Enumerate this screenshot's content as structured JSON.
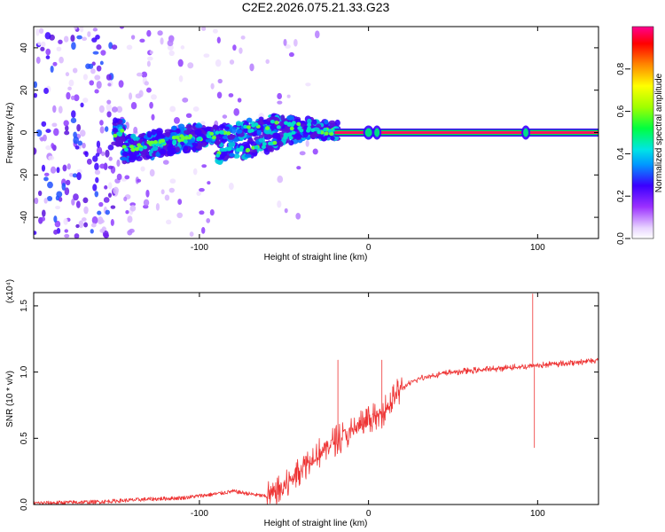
{
  "figure": {
    "title": "C2E2.2026.075.21.33.G23"
  },
  "chart_data": [
    {
      "type": "heatmap",
      "xlabel": "Height of straight line (km)",
      "ylabel": "Frequency (Hz)",
      "xlim": [
        -198,
        136
      ],
      "ylim": [
        -50,
        50
      ],
      "xticks": [
        -100,
        0,
        100
      ],
      "yticks": [
        -40,
        -20,
        0,
        20,
        40
      ],
      "xtick_labels": [
        "-100",
        "0",
        "100"
      ],
      "ytick_labels": [
        "-40",
        "-20",
        "0",
        "20",
        "40"
      ],
      "colorbar": {
        "label": "Normalized spectral amplitude",
        "range": [
          0,
          1
        ],
        "ticks": [
          0.0,
          0.2,
          0.4,
          0.6,
          0.8
        ],
        "tick_labels": [
          "0.0",
          "0.2",
          "0.4",
          "0.6",
          "0.8"
        ]
      },
      "ridge": {
        "description_points": [
          {
            "x": -145,
            "y": -8
          },
          {
            "x": -130,
            "y": -6
          },
          {
            "x": -110,
            "y": -3
          },
          {
            "x": -90,
            "y": -1
          },
          {
            "x": -70,
            "y": 2
          },
          {
            "x": -55,
            "y": 4
          },
          {
            "x": -40,
            "y": 3
          },
          {
            "x": -25,
            "y": 1
          },
          {
            "x": 0,
            "y": 0
          },
          {
            "x": 50,
            "y": 0
          },
          {
            "x": 136,
            "y": 0
          }
        ],
        "lower_branch": [
          {
            "x": -90,
            "y": -10
          },
          {
            "x": -75,
            "y": -8
          },
          {
            "x": -60,
            "y": -5
          },
          {
            "x": -45,
            "y": -1
          },
          {
            "x": -35,
            "y": 2
          }
        ]
      }
    },
    {
      "type": "line",
      "xlabel": "Height of straight line (km)",
      "ylabel": "SNR (10 * v/v)",
      "yscale_label": "(x10⁴)",
      "xlim": [
        -198,
        136
      ],
      "ylim": [
        0,
        1.6
      ],
      "xticks": [
        -100,
        0,
        100
      ],
      "yticks": [
        0.0,
        0.5,
        1.0,
        1.5
      ],
      "xtick_labels": [
        "-100",
        "0",
        "100"
      ],
      "ytick_labels": [
        "0.0",
        "0.5",
        "1.0",
        "1.5"
      ],
      "series": [
        {
          "name": "SNR",
          "color": "#ee3333",
          "x": [
            -198,
            -160,
            -130,
            -110,
            -90,
            -80,
            -70,
            -60,
            -50,
            -45,
            -40,
            -35,
            -30,
            -25,
            -20,
            -15,
            -10,
            -5,
            0,
            5,
            10,
            15,
            20,
            25,
            30,
            40,
            50,
            60,
            70,
            80,
            90,
            94,
            96,
            98,
            100,
            110,
            120,
            136
          ],
          "values": [
            0.01,
            0.02,
            0.04,
            0.05,
            0.08,
            0.1,
            0.08,
            0.06,
            0.12,
            0.2,
            0.28,
            0.33,
            0.38,
            0.43,
            0.48,
            0.52,
            0.55,
            0.6,
            0.63,
            0.66,
            0.72,
            0.8,
            0.88,
            0.92,
            0.95,
            0.98,
            1.0,
            1.01,
            1.02,
            1.03,
            1.04,
            1.04,
            1.05,
            1.05,
            1.05,
            1.06,
            1.07,
            1.09
          ]
        }
      ],
      "spikes": [
        {
          "x": -18,
          "y": 1.09
        },
        {
          "x": 8,
          "y": 1.09
        },
        {
          "x": 97,
          "y": 1.59
        },
        {
          "x": 98,
          "y": 0.43
        }
      ]
    }
  ]
}
